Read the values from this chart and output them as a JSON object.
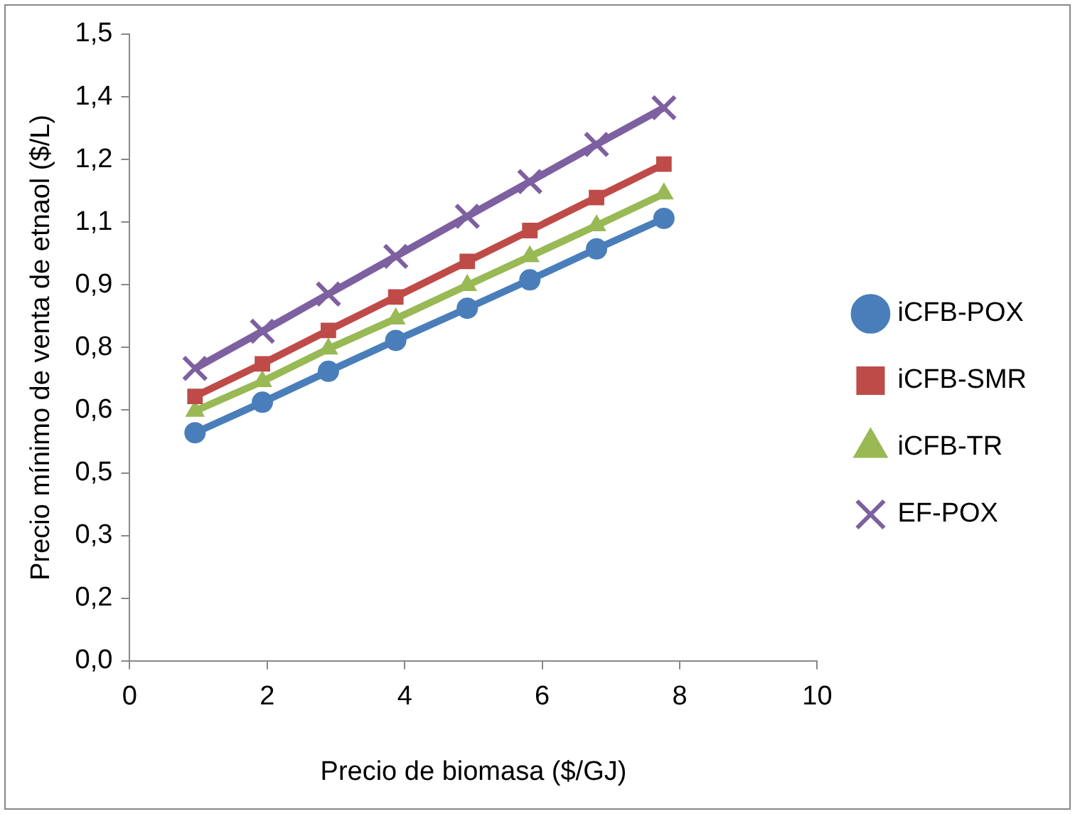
{
  "chart_data": {
    "type": "line",
    "xlabel": "Precio de biomasa ($/GJ)",
    "ylabel": "Precio mínimo de venta de etnaol ($/L)",
    "x": [
      0.95,
      1.93,
      2.89,
      3.87,
      4.91,
      5.82,
      6.79,
      7.77
    ],
    "series": [
      {
        "name": "iCFB-POX",
        "color": "#4a7ebb",
        "marker": "circle",
        "values": [
          0.546,
          0.619,
          0.693,
          0.767,
          0.844,
          0.912,
          0.986,
          1.059
        ]
      },
      {
        "name": "iCFB-SMR",
        "color": "#be4b48",
        "marker": "square",
        "values": [
          0.633,
          0.711,
          0.791,
          0.871,
          0.956,
          1.03,
          1.109,
          1.189
        ]
      },
      {
        "name": "iCFB-TR",
        "color": "#98b954",
        "marker": "triangle",
        "values": [
          0.598,
          0.669,
          0.747,
          0.819,
          0.899,
          0.968,
          1.042,
          1.118
        ]
      },
      {
        "name": "EF-POX",
        "color": "#7d60a0",
        "marker": "cross",
        "values": [
          0.7,
          0.789,
          0.878,
          0.968,
          1.064,
          1.147,
          1.236,
          1.324
        ]
      }
    ],
    "xlim": [
      0,
      10
    ],
    "xticks": [
      0,
      2,
      4,
      6,
      8,
      10
    ],
    "ylim": [
      0,
      1.5
    ],
    "yticks": [
      {
        "value": 0,
        "label": "0,0"
      },
      {
        "value": 0.15,
        "label": "0,2"
      },
      {
        "value": 0.3,
        "label": "0,3"
      },
      {
        "value": 0.45,
        "label": "0,5"
      },
      {
        "value": 0.6,
        "label": "0,6"
      },
      {
        "value": 0.75,
        "label": "0,8"
      },
      {
        "value": 0.9,
        "label": "0,9"
      },
      {
        "value": 1.05,
        "label": "1,1"
      },
      {
        "value": 1.2,
        "label": "1,2"
      },
      {
        "value": 1.35,
        "label": "1,4"
      },
      {
        "value": 1.5,
        "label": "1,5"
      }
    ],
    "grid": false,
    "legend": "right"
  }
}
